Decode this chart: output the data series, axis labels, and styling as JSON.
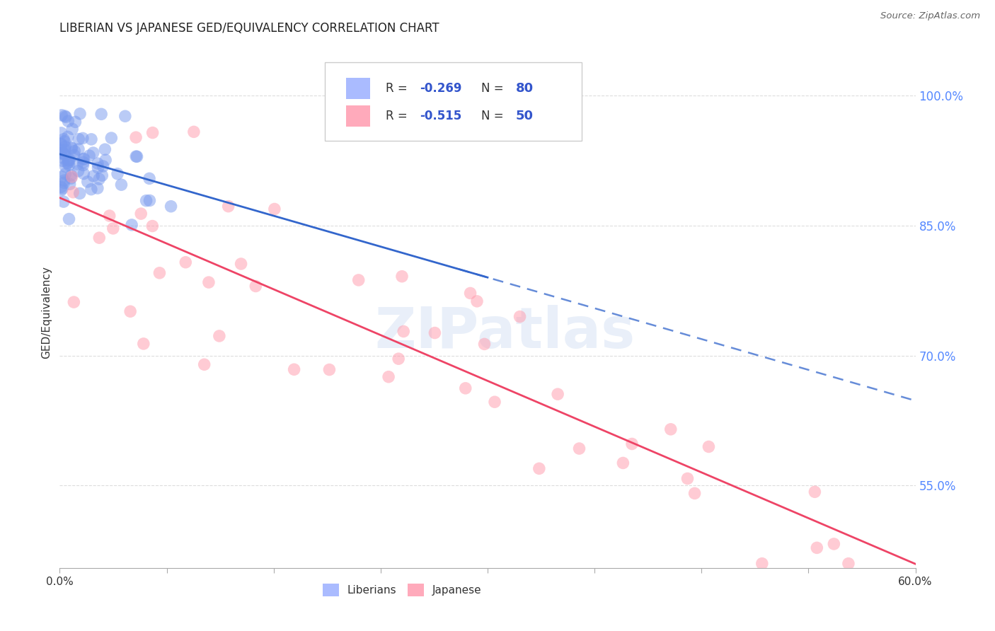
{
  "title": "LIBERIAN VS JAPANESE GED/EQUIVALENCY CORRELATION CHART",
  "source": "Source: ZipAtlas.com",
  "ylabel": "GED/Equivalency",
  "ylabel_ticks": [
    "100.0%",
    "85.0%",
    "70.0%",
    "55.0%"
  ],
  "ylabel_tick_vals": [
    1.0,
    0.85,
    0.7,
    0.55
  ],
  "xlim": [
    0.0,
    0.6
  ],
  "ylim": [
    0.455,
    1.045
  ],
  "liberian_color": "#7799ee",
  "japanese_color": "#ff99aa",
  "liberian_line_color": "#3366cc",
  "japanese_line_color": "#ee4466",
  "liberian_R": -0.269,
  "liberian_N": 80,
  "japanese_R": -0.515,
  "japanese_N": 50,
  "liberian_seed": 42,
  "japanese_seed": 7,
  "watermark": "ZIPatlas",
  "background_color": "#ffffff",
  "grid_color": "#dddddd",
  "ytick_color": "#5588ff",
  "xtick_label_left": "0.0%",
  "xtick_label_right": "60.0%"
}
